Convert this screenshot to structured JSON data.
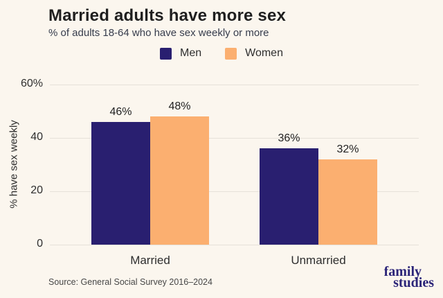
{
  "page": {
    "title": "Married adults have more sex",
    "subtitle": "% of adults 18-64 who have sex weekly or more",
    "source": "Source: General Social Survey 2016–2024",
    "background_color": "#fbf6ee",
    "grid_color": "#e6e1d9",
    "logo": {
      "line1": "family",
      "line2": "studies",
      "color": "#2b2478"
    }
  },
  "chart_data": {
    "type": "bar",
    "title": "Married adults have more sex",
    "subtitle": "% of adults 18-64 who have sex weekly or more",
    "categories": [
      "Married",
      "Unmarried"
    ],
    "series": [
      {
        "name": "Men",
        "color": "#291f70",
        "values": [
          46,
          36
        ]
      },
      {
        "name": "Women",
        "color": "#fbaf70",
        "values": [
          48,
          32
        ]
      }
    ],
    "value_label_suffix": "%",
    "xlabel": "",
    "ylabel": "% have sex weekly",
    "ylim": [
      0,
      65
    ],
    "yticks": [
      {
        "v": 0,
        "label": "0"
      },
      {
        "v": 20,
        "label": "20"
      },
      {
        "v": 40,
        "label": "40"
      },
      {
        "v": 60,
        "label": "60%"
      }
    ],
    "grid": true,
    "legend_position": "top"
  }
}
